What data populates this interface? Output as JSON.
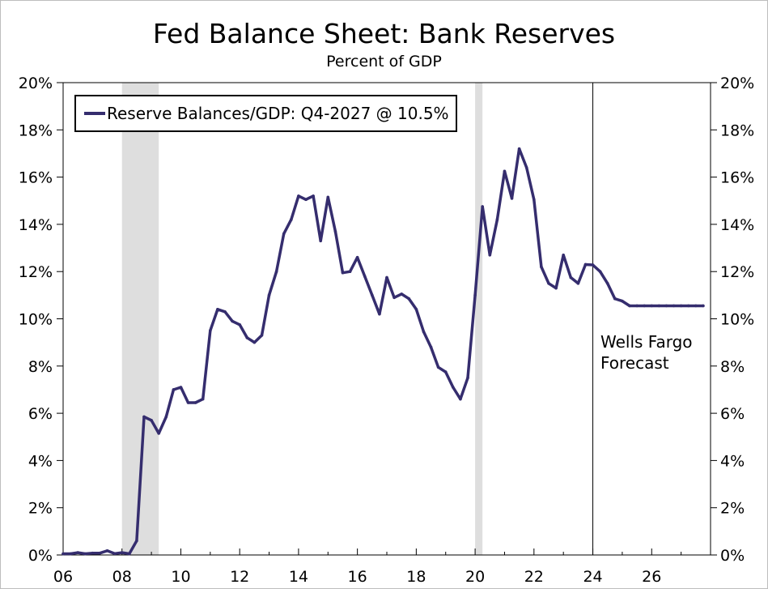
{
  "colors": {
    "series": "#352d6e",
    "recession": "#dedede",
    "axis": "#000000"
  },
  "chart_data": {
    "type": "line",
    "title": "Fed Balance Sheet: Bank Reserves",
    "subtitle": "Percent of GDP",
    "xlabel": "",
    "ylabel": "",
    "xlim": [
      2006.0,
      2028.0
    ],
    "ylim": [
      0,
      20
    ],
    "x_tick_values": [
      2006,
      2008,
      2010,
      2012,
      2014,
      2016,
      2018,
      2020,
      2022,
      2024,
      2026
    ],
    "x_tick_labels": [
      "06",
      "08",
      "10",
      "12",
      "14",
      "16",
      "18",
      "20",
      "22",
      "24",
      "26"
    ],
    "y_tick_values": [
      0,
      2,
      4,
      6,
      8,
      10,
      12,
      14,
      16,
      18,
      20
    ],
    "y_tick_labels": [
      "0%",
      "2%",
      "4%",
      "6%",
      "8%",
      "10%",
      "12%",
      "14%",
      "16%",
      "18%",
      "20%"
    ],
    "grid": false,
    "legend_position": "top-left",
    "recessions": [
      [
        2008.0,
        2009.25
      ],
      [
        2020.0,
        2020.25
      ]
    ],
    "forecast_start": 2024.0,
    "annotation": [
      "Wells Fargo",
      "Forecast"
    ],
    "series": [
      {
        "name": "Reserve Balances/GDP: Q4-2027 @ 10.5%",
        "x": [
          2006.0,
          2006.25,
          2006.5,
          2006.75,
          2007.0,
          2007.25,
          2007.5,
          2007.75,
          2008.0,
          2008.25,
          2008.5,
          2008.75,
          2009.0,
          2009.25,
          2009.5,
          2009.75,
          2010.0,
          2010.25,
          2010.5,
          2010.75,
          2011.0,
          2011.25,
          2011.5,
          2011.75,
          2012.0,
          2012.25,
          2012.5,
          2012.75,
          2013.0,
          2013.25,
          2013.5,
          2013.75,
          2014.0,
          2014.25,
          2014.5,
          2014.75,
          2015.0,
          2015.25,
          2015.5,
          2015.75,
          2016.0,
          2016.25,
          2016.5,
          2016.75,
          2017.0,
          2017.25,
          2017.5,
          2017.75,
          2018.0,
          2018.25,
          2018.5,
          2018.75,
          2019.0,
          2019.25,
          2019.5,
          2019.75,
          2020.0,
          2020.25,
          2020.5,
          2020.75,
          2021.0,
          2021.25,
          2021.5,
          2021.75,
          2022.0,
          2022.25,
          2022.5,
          2022.75,
          2023.0,
          2023.25,
          2023.5,
          2023.75,
          2024.0,
          2024.25,
          2024.5,
          2024.75,
          2025.0,
          2025.25,
          2025.5,
          2025.75,
          2026.0,
          2026.25,
          2026.5,
          2026.75,
          2027.0,
          2027.25,
          2027.5,
          2027.75
        ],
        "values": [
          0.05,
          0.05,
          0.1,
          0.05,
          0.08,
          0.08,
          0.18,
          0.06,
          0.1,
          0.05,
          0.6,
          5.85,
          5.7,
          5.15,
          5.85,
          7.0,
          7.1,
          6.45,
          6.45,
          6.6,
          9.5,
          10.4,
          10.3,
          9.9,
          9.75,
          9.2,
          9.0,
          9.3,
          11.0,
          12.0,
          13.6,
          14.2,
          15.2,
          15.05,
          15.2,
          13.3,
          15.15,
          13.7,
          11.95,
          12.0,
          12.6,
          11.8,
          11.0,
          10.2,
          11.75,
          10.9,
          11.05,
          10.85,
          10.4,
          9.45,
          8.8,
          7.95,
          7.75,
          7.1,
          6.6,
          7.5,
          11.0,
          14.75,
          12.7,
          14.2,
          16.25,
          15.1,
          17.2,
          16.4,
          15.05,
          12.2,
          11.5,
          11.3,
          12.7,
          11.75,
          11.5,
          12.3,
          12.28,
          12.0,
          11.5,
          10.85,
          10.75,
          10.55,
          10.55,
          10.55,
          10.55,
          10.55,
          10.55,
          10.55,
          10.55,
          10.55,
          10.55,
          10.55
        ]
      }
    ]
  }
}
